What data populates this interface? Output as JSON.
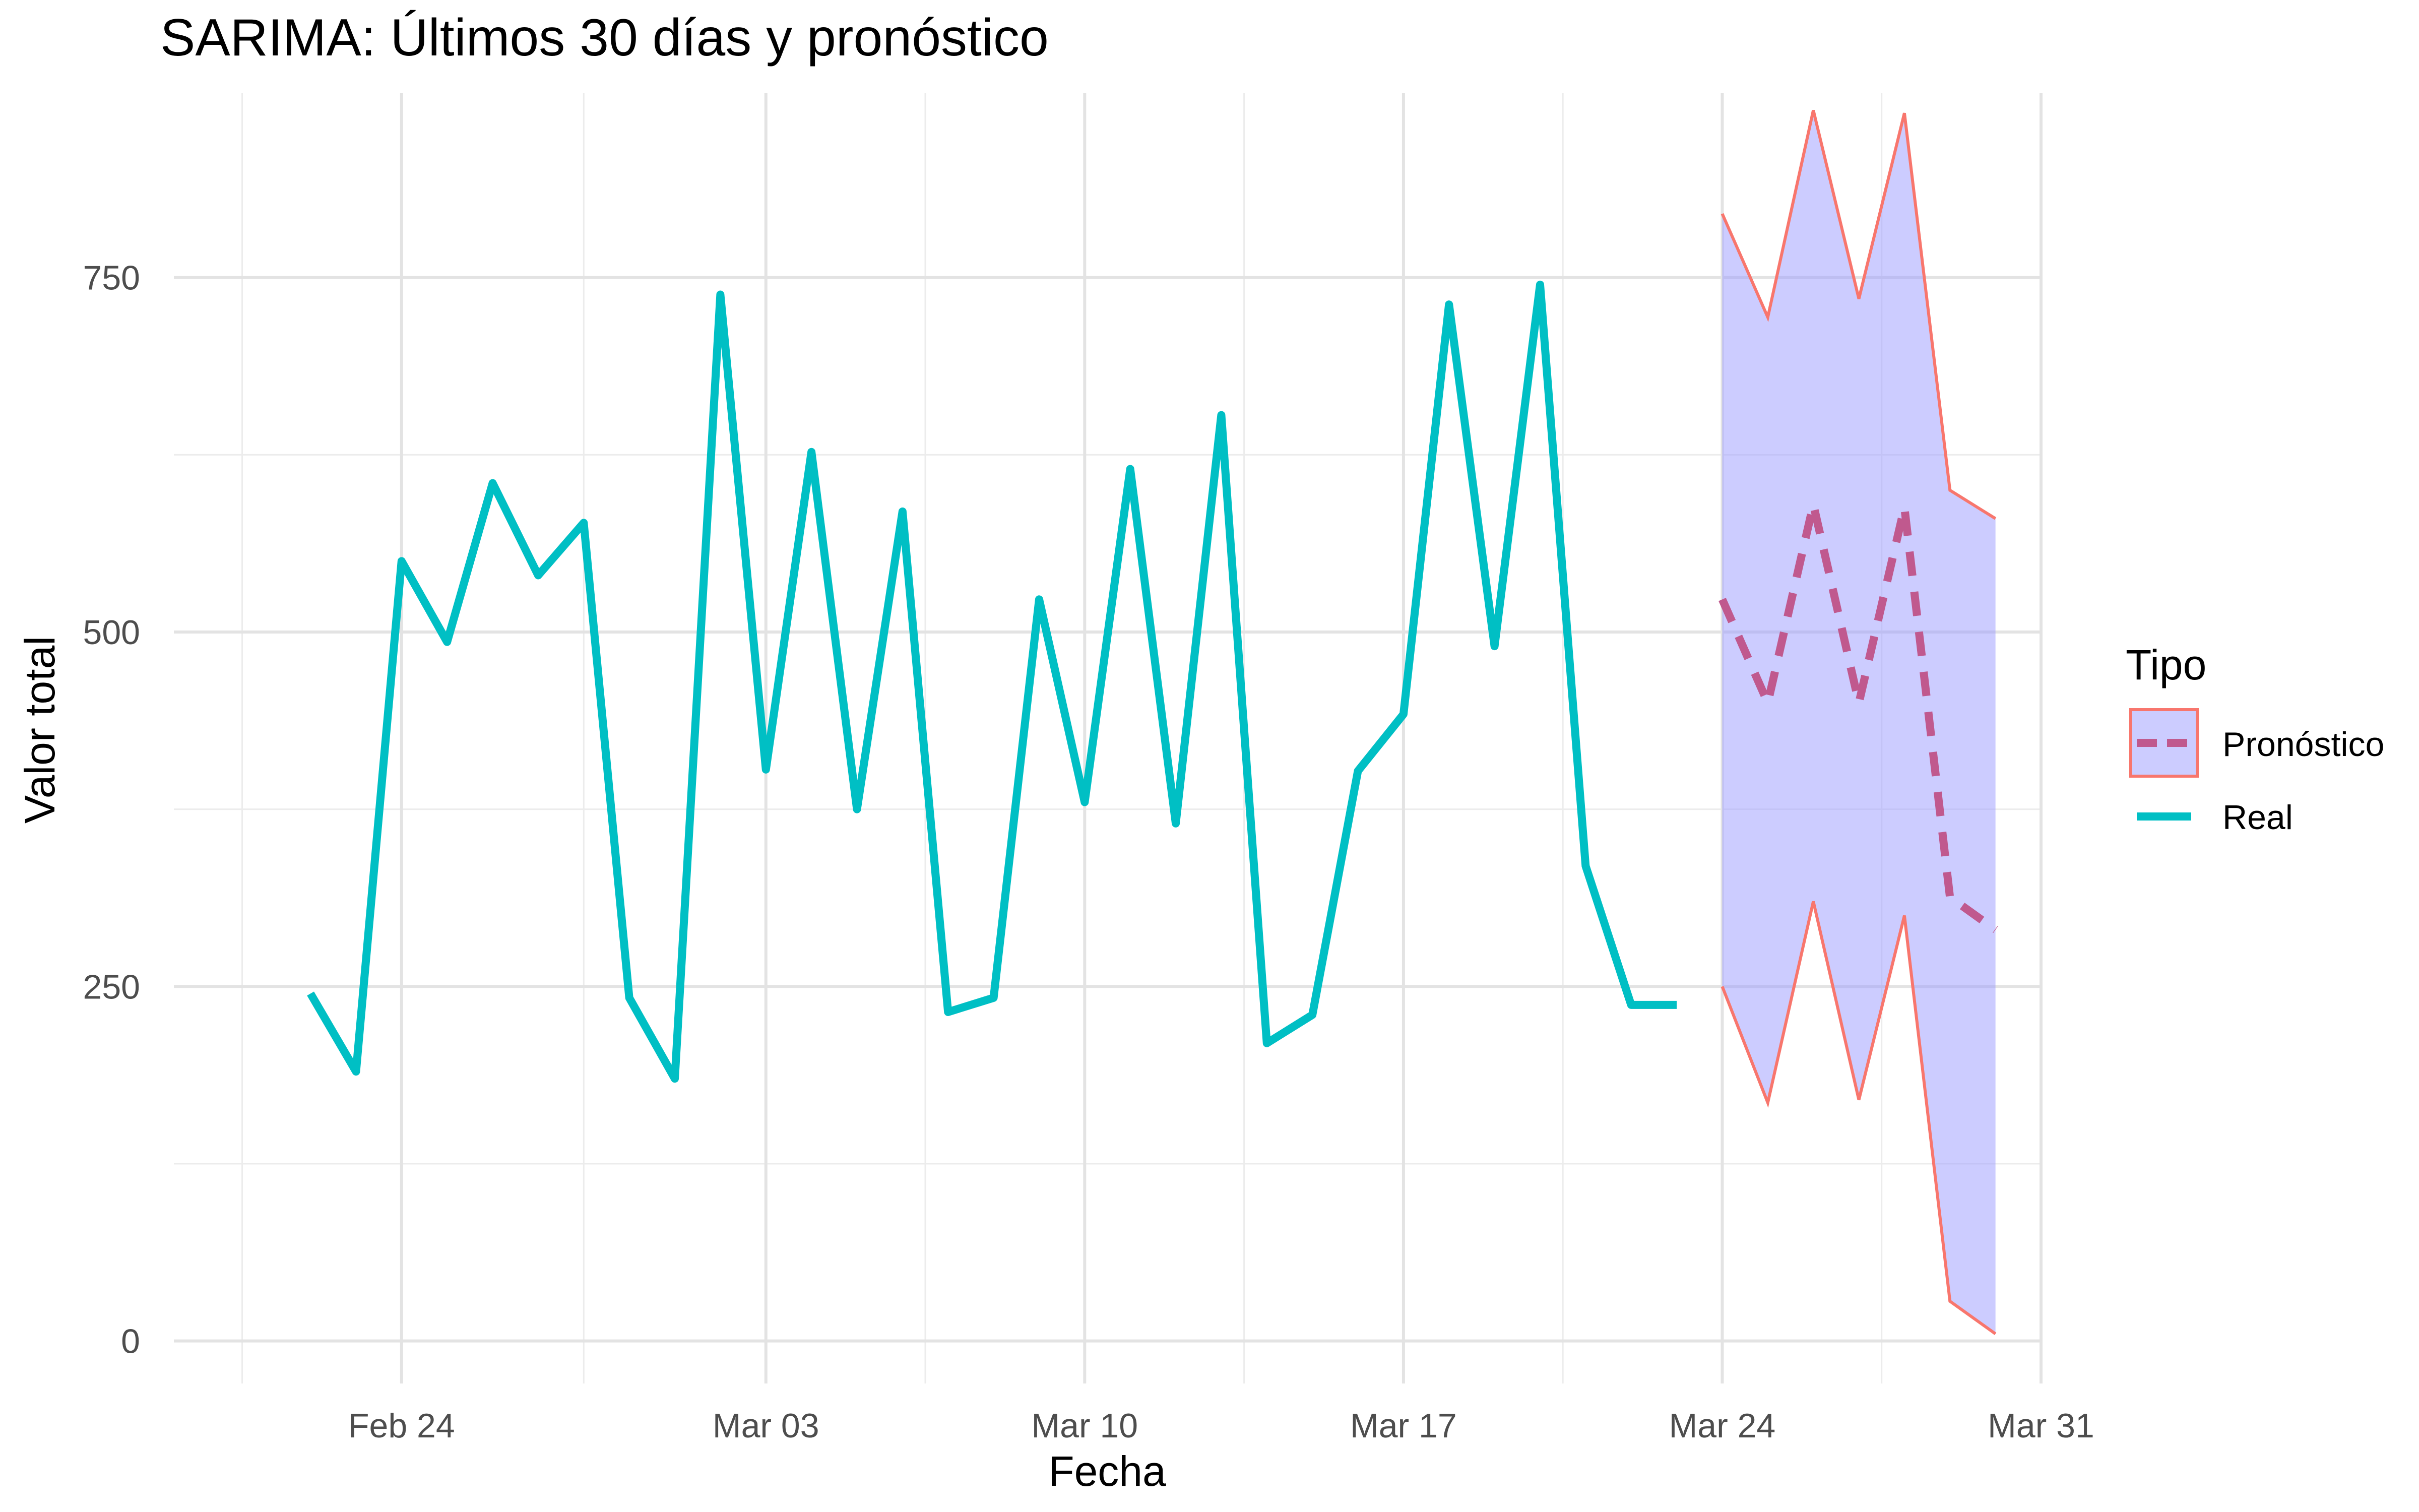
{
  "chart_data": {
    "type": "line",
    "title": "SARIMA: Últimos 30 días y pronóstico",
    "xlabel": "Fecha",
    "ylabel": "Valor total",
    "ylim": [
      -30,
      880
    ],
    "xlim": [
      "2024-02-19",
      "2024-03-31"
    ],
    "grid": true,
    "x_ticks": [
      "2024-02-24",
      "2024-03-03",
      "2024-03-10",
      "2024-03-17",
      "2024-03-24",
      "2024-03-31"
    ],
    "x_tick_labels": [
      "Feb 24",
      "Mar 03",
      "Mar 10",
      "Mar 17",
      "Mar 24",
      "Mar 31"
    ],
    "y_ticks": [
      0,
      250,
      500,
      750
    ],
    "y_tick_labels": [
      "0",
      "250",
      "500",
      "750"
    ],
    "legend": {
      "title": "Tipo",
      "position": "right",
      "entries": [
        "Pronóstico",
        "Real"
      ]
    },
    "series": [
      {
        "name": "Real",
        "color": "#00BFC4",
        "style": "solid",
        "x": [
          "2024-02-22",
          "2024-02-23",
          "2024-02-24",
          "2024-02-25",
          "2024-02-26",
          "2024-02-27",
          "2024-02-28",
          "2024-02-29",
          "2024-03-01",
          "2024-03-02",
          "2024-03-03",
          "2024-03-04",
          "2024-03-05",
          "2024-03-06",
          "2024-03-07",
          "2024-03-08",
          "2024-03-09",
          "2024-03-10",
          "2024-03-11",
          "2024-03-12",
          "2024-03-13",
          "2024-03-14",
          "2024-03-15",
          "2024-03-16",
          "2024-03-17",
          "2024-03-18",
          "2024-03-19",
          "2024-03-20",
          "2024-03-21",
          "2024-03-22",
          "2024-03-23"
        ],
        "y": [
          245,
          190,
          550,
          493,
          605,
          540,
          577,
          242,
          185,
          738,
          403,
          627,
          375,
          585,
          232,
          242,
          523,
          380,
          615,
          365,
          653,
          210,
          230,
          402,
          442,
          731,
          490,
          745,
          335,
          237,
          237
        ]
      },
      {
        "name": "Pronóstico",
        "color": "#C0598E",
        "style": "dashed",
        "x": [
          "2024-03-24",
          "2024-03-25",
          "2024-03-26",
          "2024-03-27",
          "2024-03-28",
          "2024-03-29",
          "2024-03-30"
        ],
        "y": [
          523,
          450,
          590,
          450,
          588,
          313,
          290
        ]
      }
    ],
    "interval": {
      "name": "Pronóstico",
      "fill": "#9999FF",
      "fill_opacity": 0.5,
      "edge_color": "#F8766D",
      "x": [
        "2024-03-24",
        "2024-03-25",
        "2024-03-26",
        "2024-03-27",
        "2024-03-28",
        "2024-03-29",
        "2024-03-30"
      ],
      "lower": [
        250,
        168,
        310,
        170,
        300,
        28,
        5
      ],
      "upper": [
        795,
        722,
        868,
        735,
        866,
        600,
        580
      ]
    }
  }
}
